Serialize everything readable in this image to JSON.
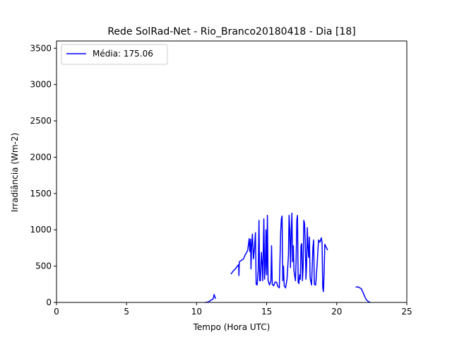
{
  "chart_data": {
    "type": "line",
    "title": "Rede SolRad-Net - Rio_Branco20180418 - Dia [18]",
    "xlabel": "Tempo (Hora UTC)",
    "ylabel": "Irradiância (Wm-2)",
    "xlim": [
      0,
      25
    ],
    "ylim": [
      0,
      3600
    ],
    "xticks": [
      0,
      5,
      10,
      15,
      20,
      25
    ],
    "yticks": [
      0,
      500,
      1000,
      1500,
      2000,
      2500,
      3000,
      3500
    ],
    "grid": false,
    "legend_position": "top-left",
    "series": [
      {
        "name": "Média: 175.06",
        "color": "#0000ff",
        "segments": [
          [
            [
              10.6,
              0
            ],
            [
              10.8,
              5
            ],
            [
              10.95,
              20
            ],
            [
              11.05,
              35
            ],
            [
              11.15,
              45
            ],
            [
              11.2,
              60
            ],
            [
              11.25,
              110
            ],
            [
              11.3,
              80
            ],
            [
              11.35,
              50
            ]
          ],
          [
            [
              12.45,
              390
            ],
            [
              12.6,
              430
            ],
            [
              12.8,
              470
            ],
            [
              12.9,
              500
            ],
            [
              13.0,
              520
            ],
            [
              13.02,
              370
            ],
            [
              13.05,
              560
            ],
            [
              13.2,
              580
            ],
            [
              13.35,
              600
            ],
            [
              13.45,
              650
            ],
            [
              13.55,
              680
            ],
            [
              13.65,
              720
            ],
            [
              13.75,
              880
            ],
            [
              13.8,
              700
            ],
            [
              13.85,
              870
            ],
            [
              13.88,
              460
            ],
            [
              13.92,
              760
            ],
            [
              13.98,
              940
            ],
            [
              14.05,
              600
            ],
            [
              14.12,
              720
            ],
            [
              14.2,
              960
            ],
            [
              14.25,
              250
            ],
            [
              14.32,
              240
            ],
            [
              14.4,
              450
            ],
            [
              14.45,
              1130
            ],
            [
              14.5,
              300
            ],
            [
              14.55,
              300
            ],
            [
              14.62,
              690
            ],
            [
              14.68,
              500
            ],
            [
              14.72,
              300
            ],
            [
              14.8,
              1150
            ],
            [
              14.85,
              320
            ],
            [
              14.9,
              480
            ],
            [
              14.95,
              1000
            ],
            [
              15.0,
              380
            ],
            [
              15.05,
              1200
            ],
            [
              15.1,
              300
            ],
            [
              15.2,
              240
            ],
            [
              15.3,
              300
            ],
            [
              15.35,
              780
            ],
            [
              15.4,
              250
            ],
            [
              15.5,
              230
            ],
            [
              15.6,
              280
            ],
            [
              15.7,
              280
            ],
            [
              15.8,
              220
            ],
            [
              15.9,
              200
            ],
            [
              15.95,
              560
            ],
            [
              16.0,
              960
            ],
            [
              16.05,
              1150
            ],
            [
              16.1,
              1190
            ],
            [
              16.15,
              300
            ],
            [
              16.2,
              500
            ],
            [
              16.25,
              230
            ],
            [
              16.35,
              200
            ],
            [
              16.45,
              320
            ],
            [
              16.55,
              650
            ],
            [
              16.6,
              1200
            ],
            [
              16.65,
              1000
            ],
            [
              16.7,
              480
            ],
            [
              16.75,
              960
            ],
            [
              16.8,
              1230
            ],
            [
              16.85,
              560
            ],
            [
              16.9,
              780
            ],
            [
              16.95,
              430
            ],
            [
              17.05,
              300
            ],
            [
              17.1,
              580
            ],
            [
              17.15,
              1140
            ],
            [
              17.2,
              1200
            ],
            [
              17.25,
              280
            ],
            [
              17.3,
              260
            ],
            [
              17.35,
              380
            ],
            [
              17.4,
              320
            ],
            [
              17.45,
              780
            ],
            [
              17.5,
              810
            ],
            [
              17.55,
              300
            ],
            [
              17.6,
              480
            ],
            [
              17.65,
              1130
            ],
            [
              17.7,
              1090
            ],
            [
              17.75,
              840
            ],
            [
              17.8,
              320
            ],
            [
              17.85,
              520
            ],
            [
              17.9,
              1030
            ],
            [
              17.95,
              760
            ],
            [
              18.0,
              620
            ],
            [
              18.05,
              900
            ],
            [
              18.1,
              340
            ],
            [
              18.2,
              240
            ],
            [
              18.3,
              760
            ],
            [
              18.35,
              860
            ],
            [
              18.4,
              250
            ],
            [
              18.5,
              240
            ],
            [
              18.6,
              520
            ],
            [
              18.7,
              860
            ],
            [
              18.8,
              830
            ],
            [
              18.9,
              890
            ],
            [
              18.95,
              820
            ],
            [
              19.0,
              200
            ],
            [
              19.05,
              150
            ],
            [
              19.1,
              400
            ],
            [
              19.15,
              800
            ],
            [
              19.2,
              780
            ],
            [
              19.3,
              740
            ],
            [
              19.35,
              720
            ]
          ],
          [
            [
              21.35,
              210
            ],
            [
              21.5,
              215
            ],
            [
              21.65,
              200
            ],
            [
              21.75,
              190
            ],
            [
              21.85,
              150
            ],
            [
              22.0,
              80
            ],
            [
              22.1,
              40
            ],
            [
              22.2,
              20
            ],
            [
              22.3,
              8
            ],
            [
              22.4,
              0
            ]
          ]
        ]
      }
    ]
  }
}
